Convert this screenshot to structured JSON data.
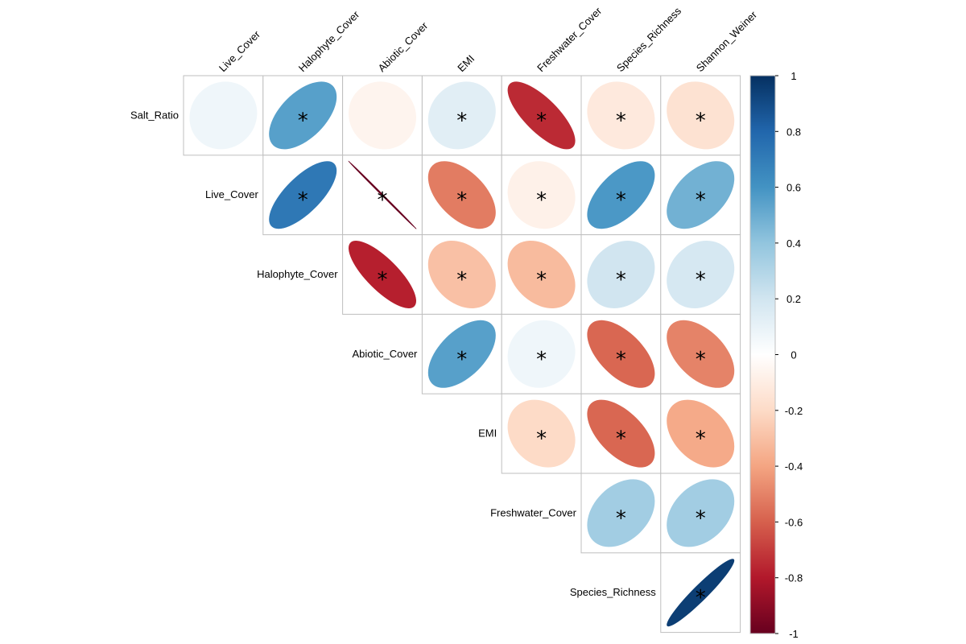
{
  "chart_data": {
    "type": "heatmap",
    "method": "ellipse",
    "layout": "upper",
    "row_labels": [
      "Salt_Ratio",
      "Live_Cover",
      "Halophyte_Cover",
      "Abiotic_Cover",
      "EMI",
      "Freshwater_Cover",
      "Species_Richness"
    ],
    "col_labels": [
      "Live_Cover",
      "Halophyte_Cover",
      "Abiotic_Cover",
      "EMI",
      "Freshwater_Cover",
      "Species_Richness",
      "Shannon_Weiner"
    ],
    "cells": [
      {
        "row": 0,
        "col": 0,
        "value": 0.07,
        "sig": false
      },
      {
        "row": 0,
        "col": 1,
        "value": 0.55,
        "sig": true
      },
      {
        "row": 0,
        "col": 2,
        "value": -0.06,
        "sig": false
      },
      {
        "row": 0,
        "col": 3,
        "value": 0.13,
        "sig": true
      },
      {
        "row": 0,
        "col": 4,
        "value": -0.75,
        "sig": true
      },
      {
        "row": 0,
        "col": 5,
        "value": -0.12,
        "sig": true
      },
      {
        "row": 0,
        "col": 6,
        "value": -0.16,
        "sig": true
      },
      {
        "row": 1,
        "col": 1,
        "value": 0.72,
        "sig": true
      },
      {
        "row": 1,
        "col": 2,
        "value": -1.0,
        "sig": true
      },
      {
        "row": 1,
        "col": 3,
        "value": -0.52,
        "sig": true
      },
      {
        "row": 1,
        "col": 4,
        "value": -0.08,
        "sig": true
      },
      {
        "row": 1,
        "col": 5,
        "value": 0.58,
        "sig": true
      },
      {
        "row": 1,
        "col": 6,
        "value": 0.48,
        "sig": true
      },
      {
        "row": 2,
        "col": 2,
        "value": -0.78,
        "sig": true
      },
      {
        "row": 2,
        "col": 3,
        "value": -0.3,
        "sig": true
      },
      {
        "row": 2,
        "col": 4,
        "value": -0.32,
        "sig": true
      },
      {
        "row": 2,
        "col": 5,
        "value": 0.2,
        "sig": true
      },
      {
        "row": 2,
        "col": 6,
        "value": 0.18,
        "sig": true
      },
      {
        "row": 3,
        "col": 3,
        "value": 0.55,
        "sig": true
      },
      {
        "row": 3,
        "col": 4,
        "value": 0.07,
        "sig": true
      },
      {
        "row": 3,
        "col": 5,
        "value": -0.58,
        "sig": true
      },
      {
        "row": 3,
        "col": 6,
        "value": -0.5,
        "sig": true
      },
      {
        "row": 4,
        "col": 4,
        "value": -0.2,
        "sig": true
      },
      {
        "row": 4,
        "col": 5,
        "value": -0.58,
        "sig": true
      },
      {
        "row": 4,
        "col": 6,
        "value": -0.38,
        "sig": true
      },
      {
        "row": 5,
        "col": 5,
        "value": 0.35,
        "sig": true
      },
      {
        "row": 5,
        "col": 6,
        "value": 0.35,
        "sig": true
      },
      {
        "row": 6,
        "col": 6,
        "value": 0.95,
        "sig": true
      }
    ],
    "colorbar": {
      "ticks": [
        "1",
        "0.8",
        "0.6",
        "0.4",
        "0.2",
        "0",
        "-0.2",
        "-0.4",
        "-0.6",
        "-0.8",
        "-1"
      ],
      "range": [
        -1,
        1
      ],
      "colors": [
        "#67001F",
        "#B2182B",
        "#D6604D",
        "#F4A582",
        "#FDDBC7",
        "#FFFFFF",
        "#D1E5F0",
        "#92C5DE",
        "#4393C3",
        "#2166AC",
        "#053061"
      ]
    },
    "significance_marker": "*"
  }
}
